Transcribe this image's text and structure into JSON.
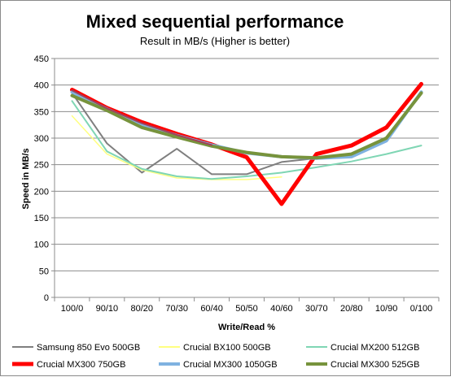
{
  "chart_data": {
    "type": "line",
    "title": "Mixed sequential performance",
    "subtitle": "Result in MB/s (Higher is better)",
    "xlabel": "Write/Read %",
    "ylabel": "Speed in MB/s",
    "ylim": [
      0,
      450
    ],
    "yticks": [
      0,
      50,
      100,
      150,
      200,
      250,
      300,
      350,
      400,
      450
    ],
    "grid": true,
    "legend_position": "bottom",
    "categories": [
      "100/0",
      "90/10",
      "80/20",
      "70/30",
      "60/40",
      "50/50",
      "40/60",
      "30/70",
      "20/80",
      "10/90",
      "0/100"
    ],
    "series": [
      {
        "name": "Samsung 850 Evo 500GB",
        "color": "#7f7f7f",
        "width": 2,
        "values": [
          385,
          290,
          235,
          280,
          232,
          232,
          255,
          262,
          265,
          300,
          null
        ]
      },
      {
        "name": "Crucial BX100 500GB",
        "color": "#ffff80",
        "width": 1.5,
        "values": [
          342,
          270,
          240,
          225,
          222,
          222,
          227,
          null,
          null,
          null,
          null
        ]
      },
      {
        "name": "Crucial MX200 512GB",
        "color": "#7fd6b4",
        "width": 2,
        "values": [
          370,
          275,
          242,
          228,
          223,
          228,
          235,
          245,
          256,
          270,
          286
        ]
      },
      {
        "name": "Crucial MX300 750GB",
        "color": "#ff0000",
        "width": 5,
        "values": [
          391,
          357,
          330,
          308,
          288,
          264,
          176,
          270,
          286,
          320,
          402
        ]
      },
      {
        "name": "Crucial MX300 1050GB",
        "color": "#7fb2e0",
        "width": 4,
        "values": [
          387,
          355,
          325,
          305,
          287,
          272,
          265,
          262,
          265,
          295,
          387
        ]
      },
      {
        "name": "Crucial MX300 525GB",
        "color": "#77933c",
        "width": 4,
        "values": [
          380,
          352,
          320,
          302,
          285,
          273,
          265,
          263,
          270,
          300,
          385
        ]
      },
      {
        "name": "",
        "color": "#a0405a",
        "width": 2,
        "values": [
          390,
          356,
          328,
          306,
          287,
          null,
          null,
          null,
          null,
          null,
          null
        ]
      }
    ]
  }
}
